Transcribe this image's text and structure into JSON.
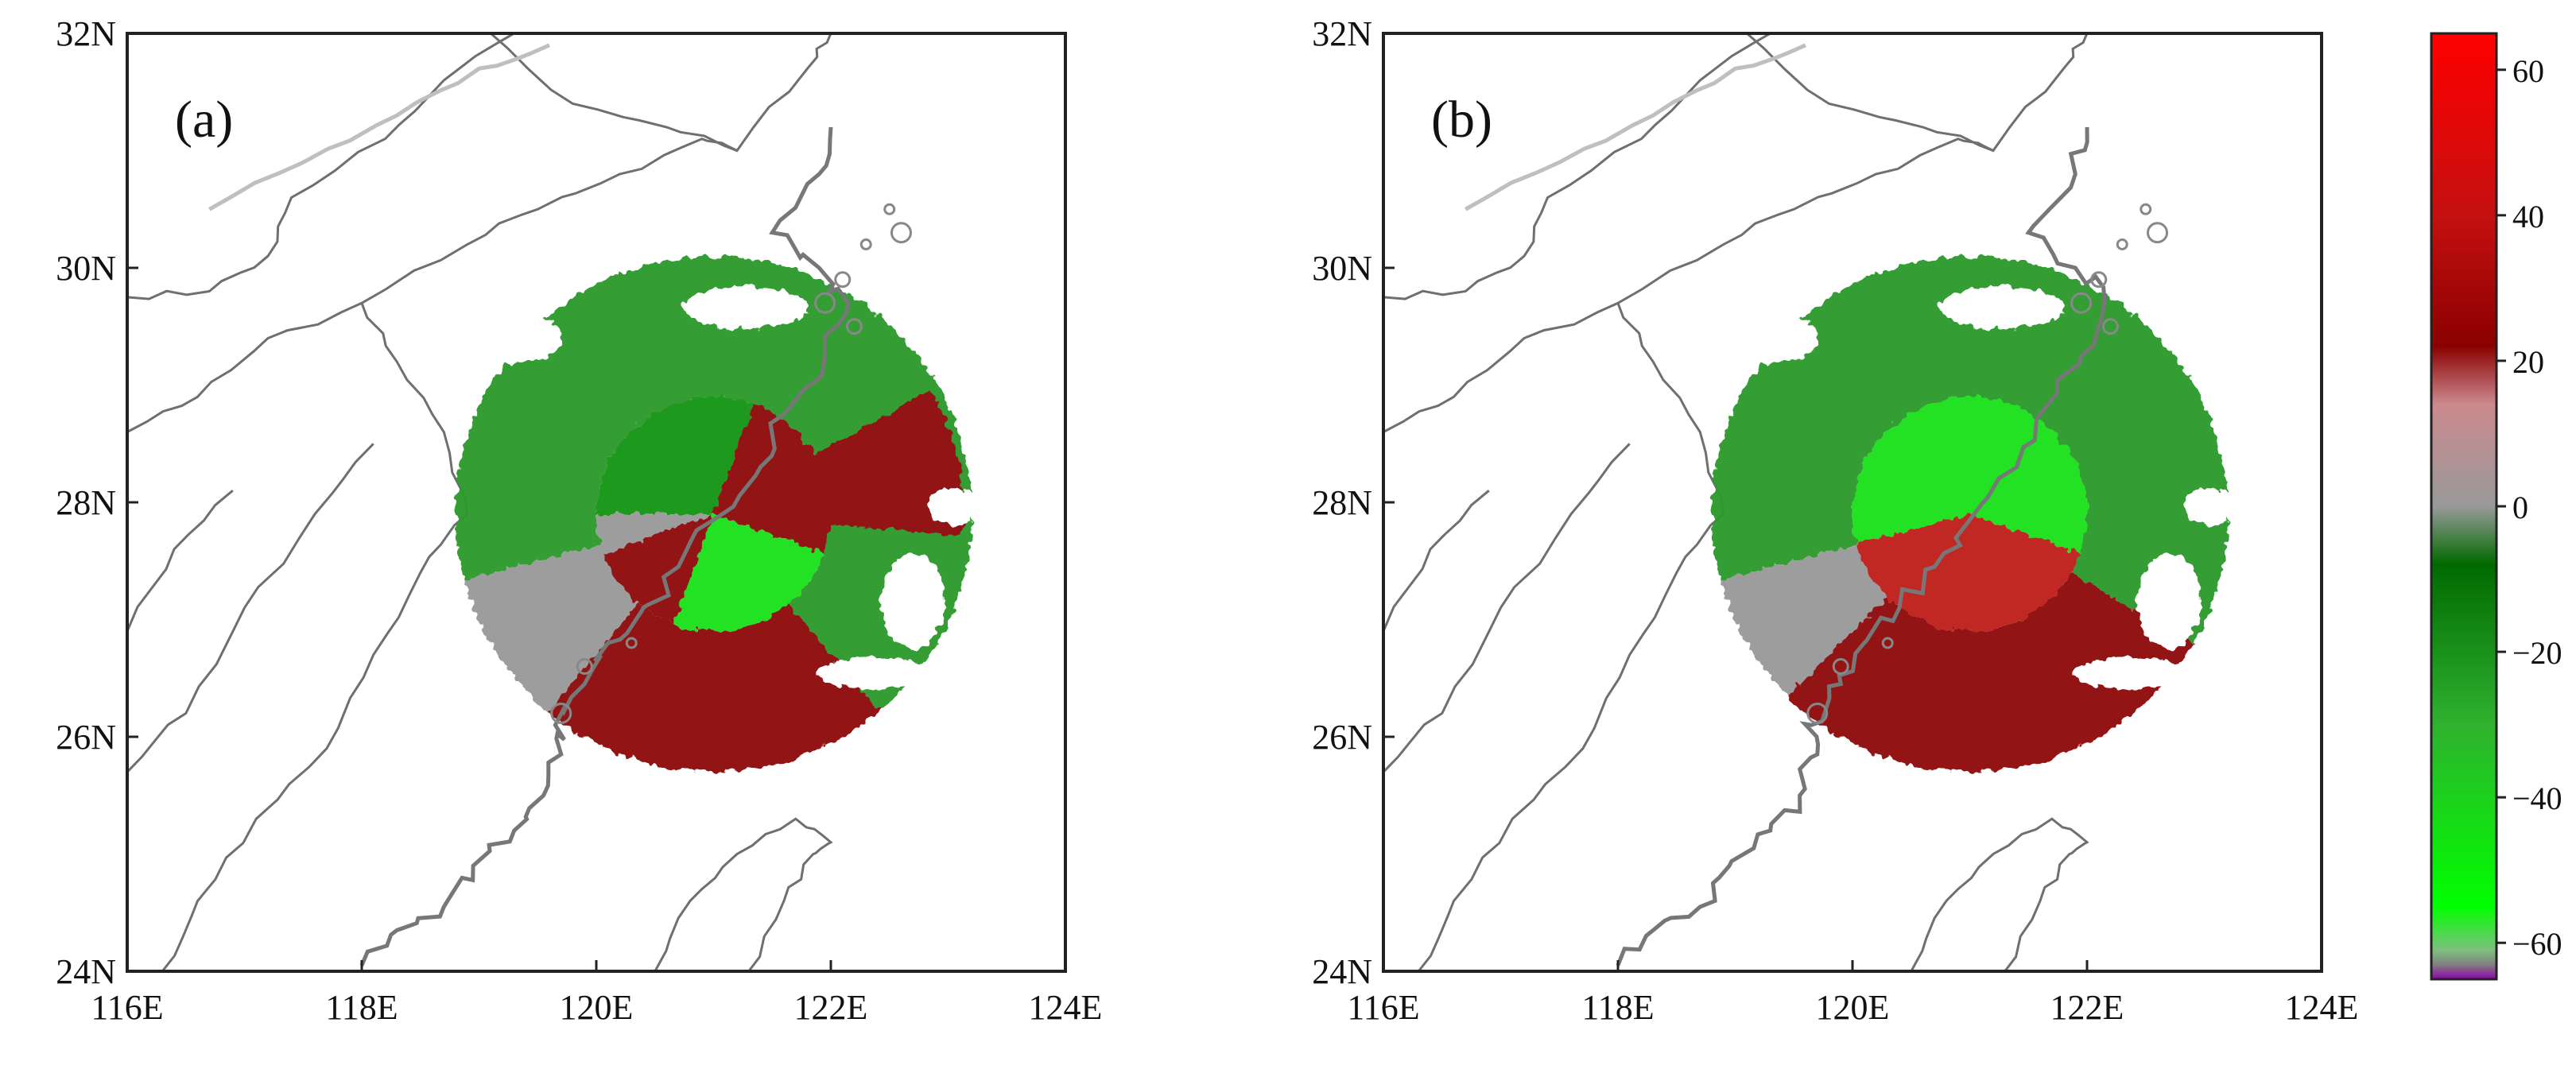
{
  "panels": [
    {
      "label": "(a)"
    },
    {
      "label": "(b)"
    }
  ],
  "map_extent": {
    "lon": [
      116,
      124
    ],
    "lat": [
      24,
      32
    ]
  },
  "x_ticks": [
    "116E",
    "118E",
    "120E",
    "122E",
    "124E"
  ],
  "y_ticks": [
    "24N",
    "26N",
    "28N",
    "30N",
    "32N"
  ],
  "colorbar": {
    "ticks": [
      "60",
      "40",
      "20",
      "0",
      "−20",
      "−40",
      "−60"
    ],
    "range": [
      -65,
      65
    ],
    "stops": [
      {
        "value": 65,
        "color": "#ff0000"
      },
      {
        "value": 40,
        "color": "#c41010"
      },
      {
        "value": 22,
        "color": "#8b0000"
      },
      {
        "value": 14,
        "color": "#cc8a8f"
      },
      {
        "value": 0,
        "color": "#999999"
      },
      {
        "value": -8,
        "color": "#006a00"
      },
      {
        "value": -30,
        "color": "#2fb22f"
      },
      {
        "value": -55,
        "color": "#00ff00"
      },
      {
        "value": -61,
        "color": "#7fbf7f"
      },
      {
        "value": -63,
        "color": "#808080"
      },
      {
        "value": -65,
        "color": "#9000b0"
      }
    ]
  },
  "radar_site": {
    "lon": 121.0,
    "lat": 27.9
  },
  "colors": {
    "outer_green": "#2f9a2f",
    "bright_green": "#1fe11f",
    "dark_green": "#129612",
    "dark_red": "#8f0f0f",
    "red": "#c0201c",
    "gray": "#9a9a9a",
    "boundary": "#6f6f6f"
  }
}
